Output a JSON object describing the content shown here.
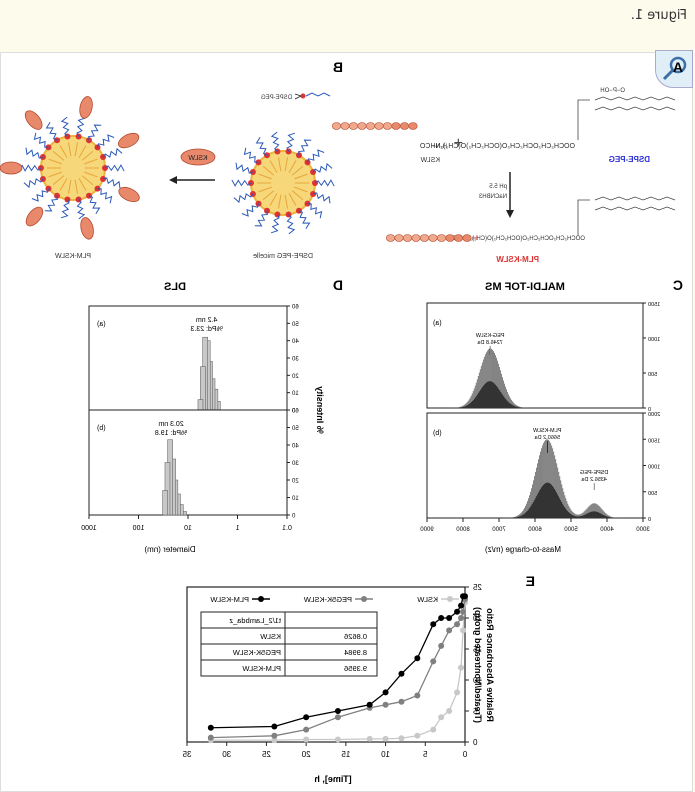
{
  "caption": "Figure 1.",
  "panel_a": {
    "letter": "A",
    "reagent_peptide": "KSLW",
    "reagent_lipid": "DSPE-PEG",
    "conditions_line1": "pH 5.5",
    "conditions_line2": "NaCNBH3",
    "product": "PLM-KSLW"
  },
  "panel_b": {
    "letter": "B",
    "legend_label": "DSPE-PEG",
    "peptide_label": "KSLW",
    "micelle_label": "DSPE-PEG micelle",
    "product_label": "PLM-KSLW"
  },
  "panel_c": {
    "letter": "C",
    "title": "MALDI-TOF MS",
    "xlabel": "Mass-to-charge (m/z)",
    "xticks": [
      "3000",
      "4000",
      "5000",
      "6000",
      "7000",
      "8000",
      "9000"
    ],
    "top": {
      "tag": "(a)",
      "peak_name": "PEG-KSLW",
      "peak_value": "7246.8 Da",
      "yticks": [
        "0",
        "500",
        "1000",
        "1500"
      ]
    },
    "bottom": {
      "tag": "(b)",
      "peak1_name": "PLM-KSLW",
      "peak1_value": "5660.2 Da",
      "peak2_name": "DSPE-PEG",
      "peak2_value": "4356.2 Da",
      "yticks": [
        "0",
        "500",
        "1000",
        "1500",
        "2000"
      ]
    }
  },
  "panel_d": {
    "letter": "D",
    "title": "DLS",
    "ylabel": "% Intensity",
    "xlabel": "Diameter (nm)",
    "xticks": [
      "0.1",
      "1",
      "10",
      "100",
      "1000"
    ],
    "yticks": [
      "0",
      "10",
      "20",
      "30",
      "40",
      "50",
      "60"
    ],
    "top": {
      "tag": "(a)",
      "size": "4.2 nm",
      "pd": "%Pd: 23.3"
    },
    "bottom": {
      "tag": "(b)",
      "size": "20.3 nm",
      "pd": "%Pd: 19.8"
    }
  },
  "panel_e": {
    "letter": "E",
    "ylabel_line1": "Relative Absorbance Ratio",
    "ylabel_line2": "(Treated/Nontreated group)",
    "xlabel": "[Time], h",
    "legend": [
      "KSLW",
      "PEG5K-KSLW",
      "PLM-KSLW"
    ],
    "table_header": [
      "",
      "t1/2_Lambda_z"
    ],
    "table_rows": [
      [
        "KSLW",
        "0.8626"
      ],
      [
        "PEG5K-KSLW",
        "8.9984"
      ],
      [
        "PLM-KSLW",
        "9.3956"
      ]
    ]
  },
  "chart_data": [
    {
      "type": "line",
      "title": "",
      "xlabel": "[Time], h",
      "ylabel": "Relative Absorbance Ratio (Treated/Nontreated group)",
      "xlim": [
        0,
        35
      ],
      "ylim": [
        0,
        25
      ],
      "xticks": [
        0,
        5,
        10,
        15,
        20,
        25,
        30,
        35
      ],
      "yticks": [
        0,
        5,
        10,
        15,
        20,
        25
      ],
      "legend_position": "top",
      "series": [
        {
          "name": "KSLW",
          "color": "#c8c8c8",
          "x": [
            0,
            0.25,
            0.5,
            1,
            2,
            3,
            4,
            6,
            8,
            10,
            12,
            16,
            20,
            24,
            32
          ],
          "y": [
            22.5,
            18,
            12,
            8,
            5,
            4,
            2,
            1,
            0.6,
            0.5,
            0.5,
            0.4,
            0.4,
            0.3,
            0.3
          ]
        },
        {
          "name": "PEG5K-KSLW",
          "color": "#808080",
          "x": [
            0,
            0.25,
            0.5,
            1,
            2,
            3,
            4,
            6,
            8,
            10,
            12,
            16,
            20,
            24,
            32
          ],
          "y": [
            23,
            21,
            20,
            19,
            18,
            15.5,
            13,
            7.5,
            6.5,
            6,
            5.5,
            4,
            2,
            1,
            0.7
          ]
        },
        {
          "name": "PLM-KSLW",
          "color": "#000000",
          "x": [
            0,
            0.25,
            0.5,
            1,
            2,
            3,
            4,
            6,
            8,
            10,
            12,
            16,
            20,
            24,
            32
          ],
          "y": [
            23.5,
            23.5,
            22,
            21,
            20,
            20,
            19,
            13.5,
            11,
            8,
            6,
            5,
            4,
            2.5,
            2.3
          ]
        }
      ]
    },
    {
      "type": "bar",
      "title": "DLS",
      "xlabel": "Diameter (nm)",
      "ylabel": "% Intensity",
      "xscale": "log",
      "xlim": [
        0.1,
        1000
      ],
      "ylim": [
        0,
        60
      ],
      "series": [
        {
          "name": "(a)",
          "x": [
            2.5,
            2.8,
            3.2,
            3.6,
            4.0,
            4.5,
            5.0,
            5.6
          ],
          "values": [
            5,
            12,
            18,
            28,
            40,
            42,
            25,
            6
          ]
        },
        {
          "name": "(b)",
          "x": [
            12,
            14,
            16,
            18,
            20,
            23,
            26,
            29
          ],
          "values": [
            2,
            6,
            12,
            20,
            32,
            43,
            30,
            14
          ]
        }
      ]
    }
  ]
}
